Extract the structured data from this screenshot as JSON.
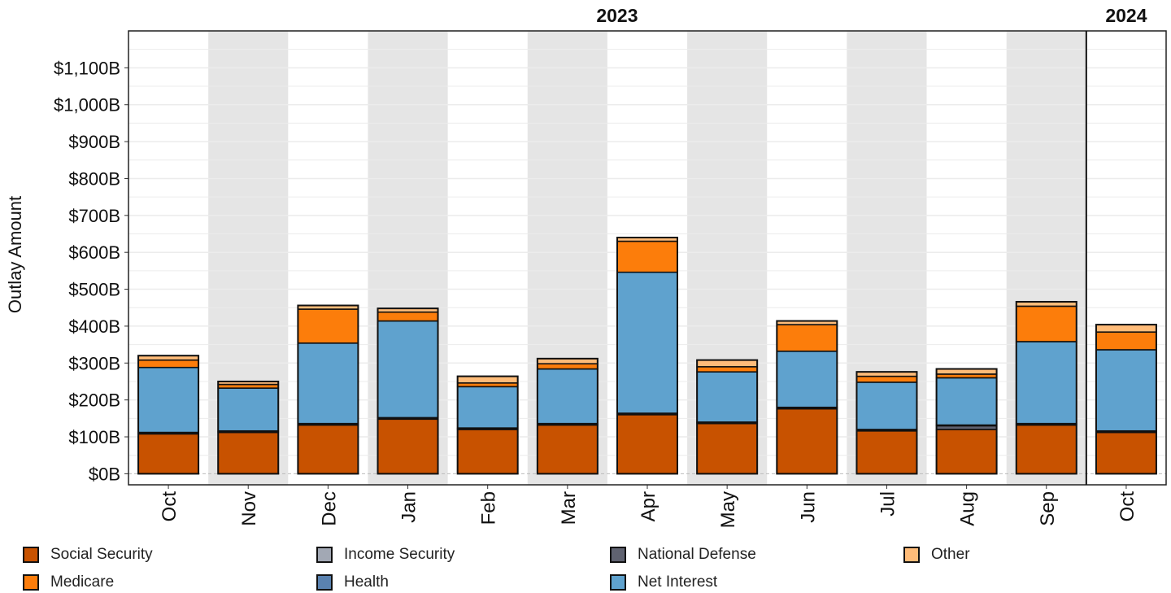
{
  "chart_data": {
    "type": "bar",
    "stacked": true,
    "ylabel": "Outlay Amount",
    "xlabel": "",
    "ylim": [
      -30,
      1200
    ],
    "y_ticks": [
      0,
      100,
      200,
      300,
      400,
      500,
      600,
      700,
      800,
      900,
      1000,
      1100
    ],
    "y_tick_labels": [
      "$0B",
      "$100B",
      "$200B",
      "$300B",
      "$400B",
      "$500B",
      "$600B",
      "$700B",
      "$800B",
      "$900B",
      "$1,000B",
      "$1,100B"
    ],
    "categories": [
      "Oct",
      "Nov",
      "Dec",
      "Jan",
      "Feb",
      "Mar",
      "Apr",
      "May",
      "Jun",
      "Jul",
      "Aug",
      "Sep",
      "Oct"
    ],
    "year_groups": [
      {
        "label": "2023",
        "start": 0,
        "end": 11
      },
      {
        "label": "2024",
        "start": 12,
        "end": 12
      }
    ],
    "shaded_categories": [
      1,
      3,
      5,
      7,
      9,
      11
    ],
    "legend_position": "bottom",
    "series": [
      {
        "name": "Social Security",
        "color": "#c85200",
        "values": [
          108,
          112,
          132,
          148,
          120,
          132,
          160,
          136,
          176,
          116,
          120,
          132,
          112
        ]
      },
      {
        "name": "National Defense",
        "color": "#5f6270",
        "values": [
          2,
          2,
          2,
          2,
          2,
          2,
          2,
          2,
          2,
          2,
          10,
          2,
          2
        ]
      },
      {
        "name": "Income Security",
        "color": "#a2a8b4",
        "values": [
          0,
          0,
          0,
          0,
          0,
          0,
          0,
          0,
          0,
          0,
          0,
          0,
          0
        ]
      },
      {
        "name": "Health",
        "color": "#5a82b0",
        "values": [
          2,
          2,
          2,
          2,
          2,
          2,
          2,
          2,
          2,
          2,
          2,
          2,
          2
        ]
      },
      {
        "name": "Net Interest",
        "color": "#5fa2ce",
        "values": [
          176,
          116,
          218,
          262,
          112,
          148,
          382,
          136,
          152,
          128,
          128,
          222,
          220
        ]
      },
      {
        "name": "Medicare",
        "color": "#fc7d0b",
        "values": [
          20,
          10,
          92,
          24,
          10,
          14,
          84,
          14,
          72,
          16,
          10,
          96,
          48
        ]
      },
      {
        "name": "Other",
        "color": "#ffbc79",
        "values": [
          12,
          8,
          10,
          10,
          18,
          14,
          10,
          18,
          10,
          12,
          14,
          12,
          20
        ]
      }
    ]
  }
}
